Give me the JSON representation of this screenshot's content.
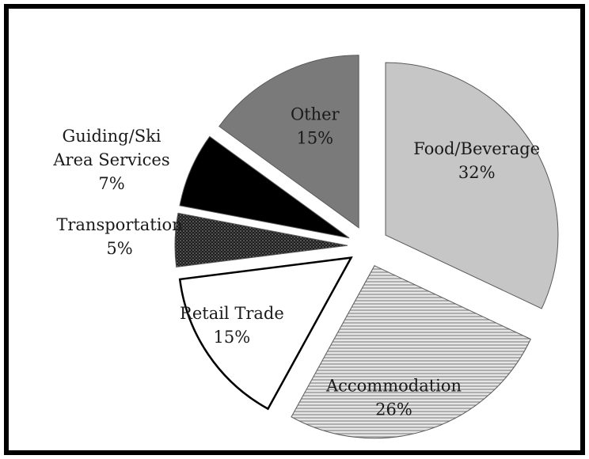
{
  "chart_data": {
    "type": "pie",
    "title": "",
    "slices": [
      {
        "label": "Food/Beverage",
        "value": 32,
        "value_label": "32%",
        "color": "#c6c6c6",
        "pattern": "solid"
      },
      {
        "label": "Accommodation",
        "value": 26,
        "value_label": "26%",
        "color": "#d2d2d2",
        "pattern": "horizontal-lines"
      },
      {
        "label": "Retail Trade",
        "value": 15,
        "value_label": "15%",
        "color": "#ffffff",
        "pattern": "solid"
      },
      {
        "label": "Transportation",
        "value": 5,
        "value_label": "5%",
        "color": "#2a2a2a",
        "pattern": "dots"
      },
      {
        "label": "Guiding/Ski Area Services",
        "value": 7,
        "value_label": "7%",
        "color": "#000000",
        "pattern": "solid"
      },
      {
        "label": "Other",
        "value": 15,
        "value_label": "15%",
        "color": "#7a7a7a",
        "pattern": "solid"
      }
    ],
    "exploded": true,
    "legend": "none"
  }
}
